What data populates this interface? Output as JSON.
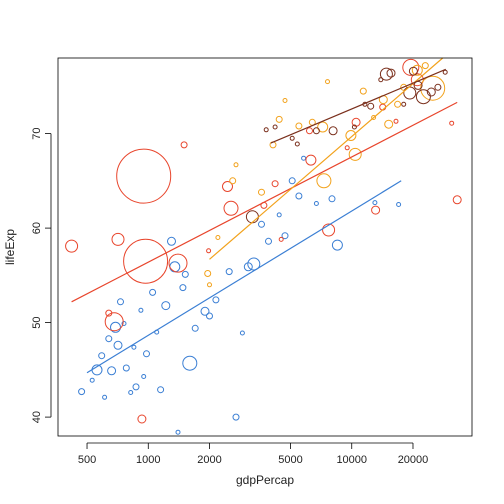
{
  "chart_data": {
    "type": "scatter",
    "title": "",
    "xlabel": "gdpPercap",
    "ylabel": "lifeExp",
    "x_scale": "log",
    "xlim": [
      360,
      39000
    ],
    "ylim": [
      38,
      78
    ],
    "x_ticks": [
      500,
      1000,
      2000,
      5000,
      10000,
      20000
    ],
    "x_tick_labels": [
      "500",
      "1000",
      "2000",
      "5000",
      "10000",
      "20000"
    ],
    "y_ticks": [
      40,
      50,
      60,
      70
    ],
    "y_tick_labels": [
      "40",
      "50",
      "60",
      "70"
    ],
    "grid": false,
    "legend": "none",
    "marker": "open circle, size proportional to population",
    "colors": {
      "blue": "#3b7fd4",
      "red": "#e8452c",
      "orange": "#f2a21c",
      "brown": "#7a2f1c",
      "frame": "#000000"
    },
    "series": [
      {
        "color": "blue",
        "points": [
          [
            470,
            42.7,
            3
          ],
          [
            530,
            43.9,
            2
          ],
          [
            560,
            45.0,
            5
          ],
          [
            590,
            46.5,
            3
          ],
          [
            610,
            42.1,
            2
          ],
          [
            640,
            48.3,
            3
          ],
          [
            660,
            44.9,
            4
          ],
          [
            690,
            49.5,
            5
          ],
          [
            710,
            47.6,
            4
          ],
          [
            730,
            52.2,
            3
          ],
          [
            760,
            49.9,
            2
          ],
          [
            780,
            45.2,
            3
          ],
          [
            820,
            42.6,
            2
          ],
          [
            850,
            47.4,
            2
          ],
          [
            870,
            43.2,
            3
          ],
          [
            920,
            51.3,
            2
          ],
          [
            950,
            44.3,
            2
          ],
          [
            980,
            46.7,
            3
          ],
          [
            1050,
            53.2,
            3
          ],
          [
            1100,
            49.0,
            2
          ],
          [
            1150,
            42.9,
            3
          ],
          [
            1220,
            51.8,
            4
          ],
          [
            1300,
            58.6,
            4
          ],
          [
            1350,
            55.9,
            5
          ],
          [
            1400,
            38.4,
            2
          ],
          [
            1480,
            53.7,
            3
          ],
          [
            1520,
            55.1,
            3
          ],
          [
            1600,
            45.7,
            7
          ],
          [
            1700,
            49.4,
            3
          ],
          [
            1900,
            51.2,
            4
          ],
          [
            2000,
            50.7,
            3
          ],
          [
            2150,
            52.4,
            3
          ],
          [
            2500,
            55.4,
            3
          ],
          [
            2700,
            40.0,
            3
          ],
          [
            2900,
            48.9,
            2
          ],
          [
            3100,
            55.9,
            4
          ],
          [
            3300,
            56.2,
            6
          ],
          [
            3600,
            60.4,
            3
          ],
          [
            3900,
            58.6,
            3
          ],
          [
            4400,
            61.4,
            2
          ],
          [
            4700,
            59.2,
            3
          ],
          [
            5100,
            65.0,
            3
          ],
          [
            5500,
            63.4,
            3
          ],
          [
            5800,
            67.4,
            2
          ],
          [
            6700,
            62.6,
            2
          ],
          [
            8000,
            63.1,
            3
          ],
          [
            8500,
            58.2,
            5
          ],
          [
            13000,
            62.7,
            2
          ],
          [
            17000,
            62.5,
            2
          ]
        ]
      },
      {
        "color": "red",
        "points": [
          [
            420,
            58.1,
            6
          ],
          [
            640,
            51.0,
            3
          ],
          [
            680,
            50.1,
            9
          ],
          [
            710,
            58.8,
            6
          ],
          [
            930,
            39.8,
            4
          ],
          [
            950,
            65.5,
            27
          ],
          [
            970,
            56.5,
            22
          ],
          [
            1400,
            56.3,
            9
          ],
          [
            1500,
            68.8,
            3
          ],
          [
            1980,
            57.6,
            2
          ],
          [
            2450,
            64.4,
            5
          ],
          [
            2550,
            62.1,
            7
          ],
          [
            3700,
            62.4,
            3
          ],
          [
            4200,
            64.7,
            3
          ],
          [
            4500,
            58.8,
            2
          ],
          [
            6200,
            70.3,
            3
          ],
          [
            6300,
            67.2,
            5
          ],
          [
            7700,
            59.8,
            6
          ],
          [
            9500,
            68.5,
            2
          ],
          [
            10500,
            71.2,
            4
          ],
          [
            13100,
            61.9,
            4
          ],
          [
            14200,
            72.8,
            3
          ],
          [
            16500,
            71.3,
            2
          ],
          [
            19500,
            77.0,
            8
          ],
          [
            21000,
            75.7,
            6
          ],
          [
            31000,
            71.1,
            2
          ],
          [
            33000,
            63.0,
            4
          ]
        ]
      },
      {
        "color": "orange",
        "points": [
          [
            1960,
            55.2,
            3
          ],
          [
            2000,
            54.0,
            2
          ],
          [
            2200,
            59.0,
            2
          ],
          [
            2600,
            65.0,
            3
          ],
          [
            2700,
            66.7,
            2
          ],
          [
            3600,
            63.8,
            3
          ],
          [
            4100,
            68.8,
            3
          ],
          [
            4400,
            71.5,
            3
          ],
          [
            4700,
            73.5,
            2
          ],
          [
            5500,
            70.8,
            3
          ],
          [
            6400,
            71.2,
            3
          ],
          [
            7200,
            70.7,
            5
          ],
          [
            7300,
            65.0,
            7
          ],
          [
            7600,
            75.5,
            2
          ],
          [
            9900,
            69.8,
            5
          ],
          [
            10400,
            67.8,
            6
          ],
          [
            11400,
            74.5,
            3
          ],
          [
            12800,
            71.7,
            2
          ],
          [
            14300,
            73.6,
            4
          ],
          [
            15200,
            71.0,
            4
          ],
          [
            16800,
            73.1,
            3
          ],
          [
            18000,
            74.9,
            3
          ],
          [
            21000,
            76.7,
            5
          ],
          [
            23000,
            77.2,
            3
          ],
          [
            25000,
            74.8,
            12
          ]
        ]
      },
      {
        "color": "brown",
        "points": [
          [
            3250,
            61.2,
            6
          ],
          [
            3800,
            70.4,
            2
          ],
          [
            4200,
            70.7,
            2
          ],
          [
            5100,
            69.5,
            2
          ],
          [
            5400,
            68.9,
            2
          ],
          [
            6700,
            70.3,
            3
          ],
          [
            8100,
            70.3,
            4
          ],
          [
            10300,
            70.7,
            2
          ],
          [
            11600,
            73.1,
            2
          ],
          [
            12400,
            72.9,
            3
          ],
          [
            13900,
            75.7,
            2
          ],
          [
            14800,
            76.3,
            6
          ],
          [
            15600,
            76.4,
            4
          ],
          [
            18000,
            73.1,
            2
          ],
          [
            19300,
            74.3,
            6
          ],
          [
            20100,
            76.6,
            4
          ],
          [
            21200,
            75.1,
            4
          ],
          [
            22500,
            73.9,
            7
          ],
          [
            24600,
            74.4,
            4
          ],
          [
            26500,
            74.9,
            3
          ],
          [
            28800,
            76.5,
            2
          ]
        ]
      }
    ],
    "fit_lines": [
      {
        "color": "blue",
        "x": [
          500,
          17500
        ],
        "y": [
          44.7,
          65.0
        ]
      },
      {
        "color": "red",
        "x": [
          420,
          33000
        ],
        "y": [
          52.2,
          73.3
        ]
      },
      {
        "color": "orange",
        "x": [
          2000,
          28000
        ],
        "y": [
          56.7,
          78.0
        ]
      },
      {
        "color": "brown",
        "x": [
          4000,
          29000
        ],
        "y": [
          69.0,
          76.8
        ]
      }
    ]
  }
}
